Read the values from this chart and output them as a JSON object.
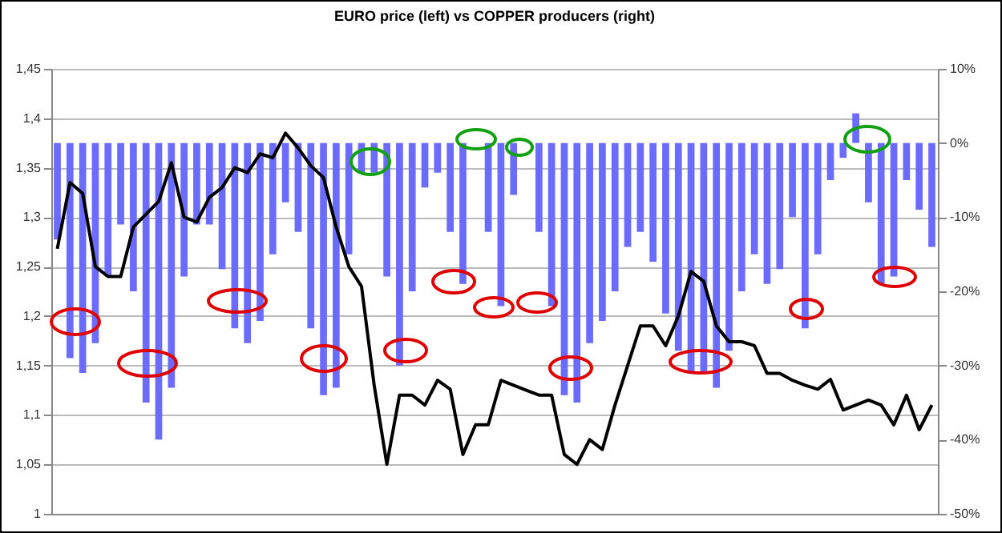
{
  "chart_data": {
    "type": "bar",
    "title": "EURO price (left) vs COPPER producers (right)",
    "categories": [
      null,
      null,
      null,
      null,
      null,
      null,
      null,
      null,
      null,
      null,
      null,
      null,
      null,
      null,
      null,
      null,
      null,
      null,
      null,
      null,
      null,
      null,
      null,
      null,
      null,
      null,
      null,
      null,
      null,
      null,
      null,
      null,
      null,
      null,
      null,
      null,
      null,
      null,
      null,
      null,
      null,
      null,
      null,
      null,
      null,
      null,
      null,
      null,
      null,
      null,
      null,
      null,
      null,
      null,
      null,
      null,
      null,
      null,
      null,
      null,
      null,
      null,
      null,
      null,
      null,
      null,
      null,
      null,
      null,
      null
    ],
    "series": [
      {
        "axis": "y2",
        "color": "#6b6bff",
        "values": [
          -13,
          -29,
          -31,
          -27,
          -18,
          -11,
          -20,
          -35,
          -40,
          -33,
          -18,
          -11,
          -11,
          -17,
          -25,
          -27,
          -24,
          -15,
          -8,
          -12,
          -25,
          -34,
          -33,
          -15,
          -4,
          -4,
          -18,
          -30,
          -20,
          -6,
          -4,
          -12,
          -19,
          0,
          -12,
          -22,
          -7,
          0,
          -12,
          -22,
          -34,
          -35,
          -27,
          -24,
          -20,
          -14,
          -12,
          -16,
          -23,
          -28,
          -31,
          -31,
          -33,
          -28,
          -20,
          -15,
          -19,
          -17,
          -10,
          -25,
          -15,
          -5,
          -2,
          4,
          -8,
          -19,
          -18,
          -5,
          -9,
          -14
        ]
      },
      {
        "type": "line",
        "axis": "y",
        "color": "#000000",
        "values": [
          1.268,
          1.335,
          1.324,
          1.25,
          1.24,
          1.24,
          1.29,
          1.303,
          1.316,
          1.355,
          1.3,
          1.295,
          1.32,
          1.33,
          1.35,
          1.345,
          1.364,
          1.36,
          1.385,
          1.37,
          1.352,
          1.34,
          1.29,
          1.25,
          1.23,
          1.13,
          1.05,
          1.12,
          1.12,
          1.11,
          1.135,
          1.126,
          1.06,
          1.09,
          1.09,
          1.135,
          1.13,
          1.125,
          1.12,
          1.12,
          1.06,
          1.05,
          1.075,
          1.065,
          1.11,
          1.15,
          1.19,
          1.19,
          1.17,
          1.2,
          1.245,
          1.235,
          1.19,
          1.174,
          1.174,
          1.17,
          1.142,
          1.142,
          1.135,
          1.13,
          1.126,
          1.136,
          1.105,
          1.11,
          1.115,
          1.11,
          1.09,
          1.12,
          1.085,
          1.11
        ]
      }
    ],
    "ylim": [
      1,
      1.45
    ],
    "yticks": [
      1,
      {
        "value": 1.05,
        "label": "1,05"
      },
      {
        "value": 1.1,
        "label": "1,1"
      },
      {
        "value": 1.15,
        "label": "1,15"
      },
      {
        "value": 1.2,
        "label": "1,2"
      },
      {
        "value": 1.25,
        "label": "1,25"
      },
      {
        "value": 1.3,
        "label": "1,3"
      },
      {
        "value": 1.35,
        "label": "1,35"
      },
      {
        "value": 1.4,
        "label": "1,4"
      },
      {
        "value": 1.45,
        "label": "1,45"
      }
    ],
    "y2lim": [
      -50,
      10
    ],
    "y2ticks": [
      {
        "value": -50,
        "label": "-50%"
      },
      {
        "value": -40,
        "label": "-40%"
      },
      {
        "value": -30,
        "label": "-30%"
      },
      {
        "value": -20,
        "label": "-20%"
      },
      {
        "value": -10,
        "label": "-10%"
      },
      {
        "value": 0,
        "label": "0%"
      },
      {
        "value": 10,
        "label": "10%"
      }
    ],
    "grid": "y",
    "marker": "none",
    "line_style": "solid"
  }
}
